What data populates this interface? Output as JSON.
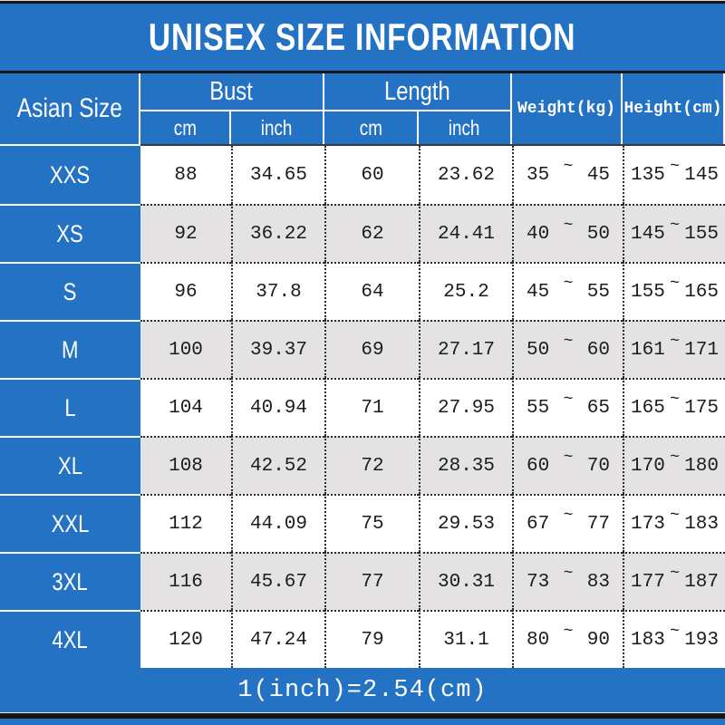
{
  "title": "UNISEX SIZE INFORMATION",
  "header": {
    "size_column": "Asian Size",
    "bust": {
      "label": "Bust",
      "units": [
        "cm",
        "inch"
      ]
    },
    "length": {
      "label": "Length",
      "units": [
        "cm",
        "inch"
      ]
    },
    "weight": "Weight(kg)",
    "height": "Height(cm)"
  },
  "range_separator": "~",
  "rows": [
    {
      "size": "XXS",
      "bust_cm": "88",
      "bust_inch": "34.65",
      "len_cm": "60",
      "len_inch": "23.62",
      "weight_min": "35",
      "weight_max": "45",
      "height_min": "135",
      "height_max": "145"
    },
    {
      "size": "XS",
      "bust_cm": "92",
      "bust_inch": "36.22",
      "len_cm": "62",
      "len_inch": "24.41",
      "weight_min": "40",
      "weight_max": "50",
      "height_min": "145",
      "height_max": "155"
    },
    {
      "size": "S",
      "bust_cm": "96",
      "bust_inch": "37.8",
      "len_cm": "64",
      "len_inch": "25.2",
      "weight_min": "45",
      "weight_max": "55",
      "height_min": "155",
      "height_max": "165"
    },
    {
      "size": "M",
      "bust_cm": "100",
      "bust_inch": "39.37",
      "len_cm": "69",
      "len_inch": "27.17",
      "weight_min": "50",
      "weight_max": "60",
      "height_min": "161",
      "height_max": "171"
    },
    {
      "size": "L",
      "bust_cm": "104",
      "bust_inch": "40.94",
      "len_cm": "71",
      "len_inch": "27.95",
      "weight_min": "55",
      "weight_max": "65",
      "height_min": "165",
      "height_max": "175"
    },
    {
      "size": "XL",
      "bust_cm": "108",
      "bust_inch": "42.52",
      "len_cm": "72",
      "len_inch": "28.35",
      "weight_min": "60",
      "weight_max": "70",
      "height_min": "170",
      "height_max": "180"
    },
    {
      "size": "XXL",
      "bust_cm": "112",
      "bust_inch": "44.09",
      "len_cm": "75",
      "len_inch": "29.53",
      "weight_min": "67",
      "weight_max": "77",
      "height_min": "173",
      "height_max": "183"
    },
    {
      "size": "3XL",
      "bust_cm": "116",
      "bust_inch": "45.67",
      "len_cm": "77",
      "len_inch": "30.31",
      "weight_min": "73",
      "weight_max": "83",
      "height_min": "177",
      "height_max": "187"
    },
    {
      "size": "4XL",
      "bust_cm": "120",
      "bust_inch": "47.24",
      "len_cm": "79",
      "len_inch": "31.1",
      "weight_min": "80",
      "weight_max": "90",
      "height_min": "183",
      "height_max": "193"
    }
  ],
  "footer": {
    "conversion": "1(inch)=2.54(cm)"
  },
  "colors": {
    "accent_blue": "#2472c4",
    "stripe_gray": "#e4e2e3",
    "line_black": "#151515",
    "text_white": "#ffffff",
    "text_dark": "#1c1c1c"
  }
}
